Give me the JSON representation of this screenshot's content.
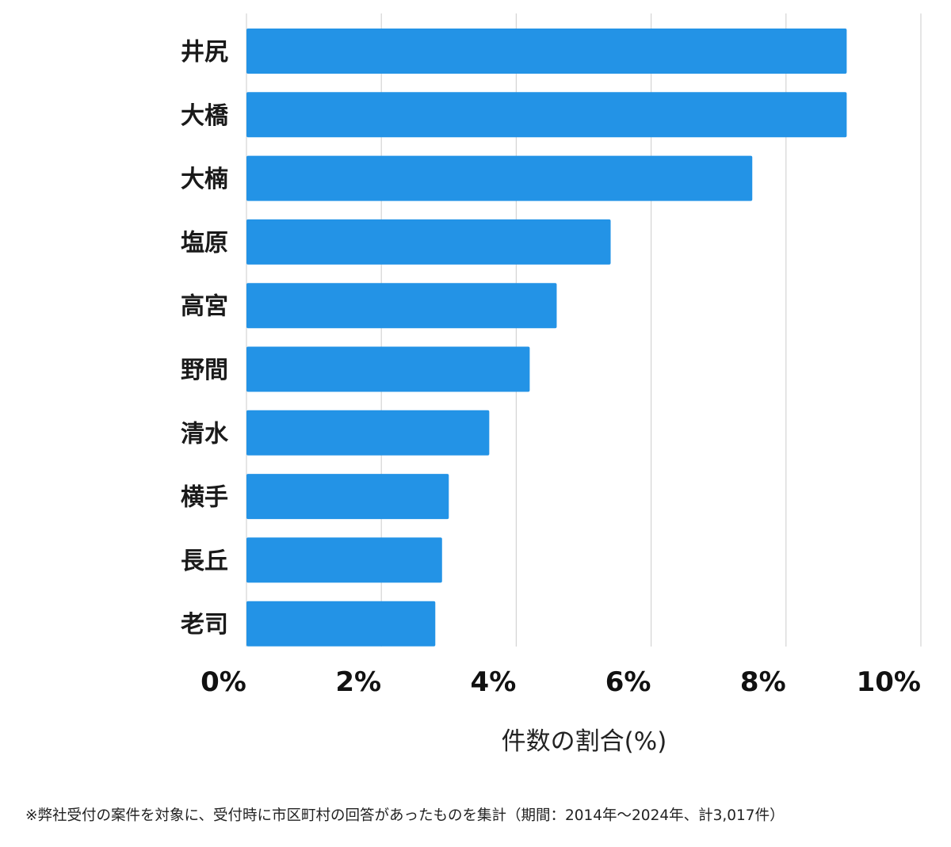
{
  "chart_data": {
    "type": "bar",
    "orientation": "horizontal",
    "categories": [
      "井尻",
      "大橋",
      "大楠",
      "塩原",
      "高宮",
      "野間",
      "清水",
      "横手",
      "長丘",
      "老司"
    ],
    "values": [
      8.9,
      8.9,
      7.5,
      5.4,
      4.6,
      4.2,
      3.6,
      3.0,
      2.9,
      2.8
    ],
    "xlabel": "件数の割合(%)",
    "xlim": [
      0,
      10
    ],
    "ticks": [
      0,
      2,
      4,
      6,
      8,
      10
    ],
    "tick_labels": [
      "0%",
      "2%",
      "4%",
      "6%",
      "8%",
      "10%"
    ],
    "grid": "vertical",
    "bar_color": "#2393e6"
  },
  "footnote": "※弊社受付の案件を対象に、受付時に市区町村の回答があったものを集計（期間：2014年～2024年、計3,017件）"
}
